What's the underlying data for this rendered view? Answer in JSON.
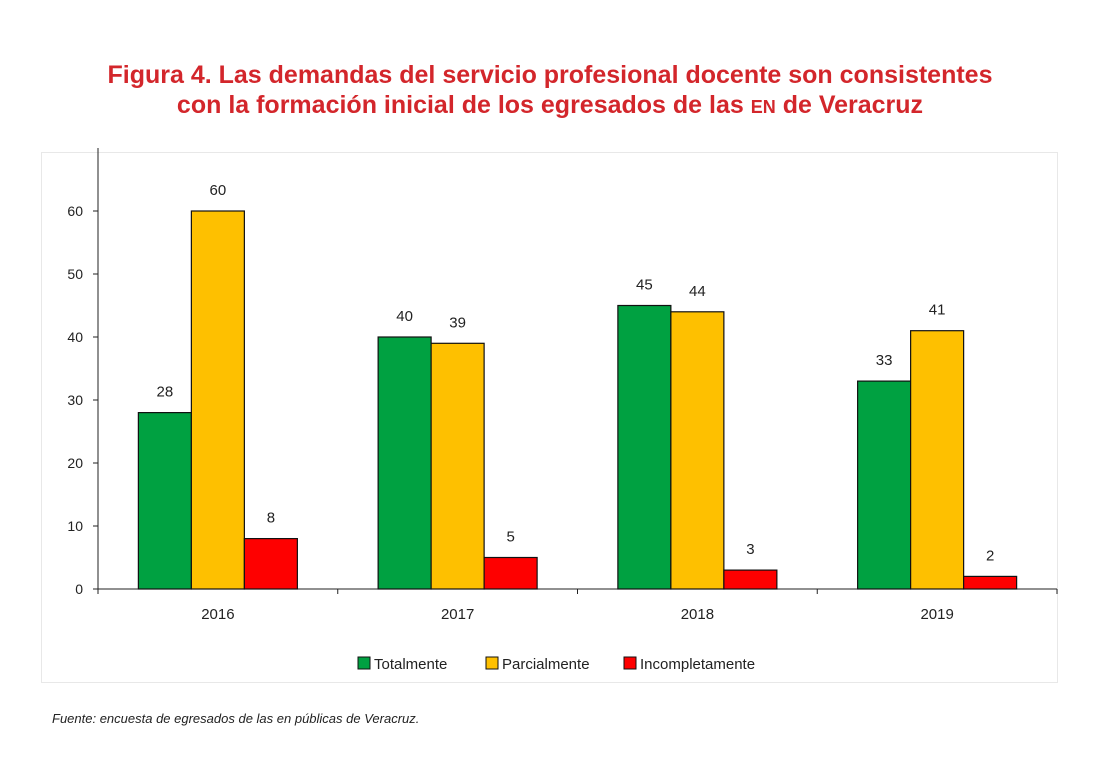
{
  "title": {
    "line1": "Figura 4. Las demandas del servicio profesional docente son consistentes",
    "line2_a": "con la formación inicial de los egresados de las ",
    "line2_sc": "en",
    "line2_b": " de Veracruz"
  },
  "source": "Fuente: encuesta de egresados de las en públicas de Veracruz.",
  "colors": {
    "Totalmente": "#00a141",
    "Parcialmente": "#fec000",
    "Incompletamente": "#fe0000"
  },
  "chart_data": {
    "type": "bar",
    "categories": [
      "2016",
      "2017",
      "2018",
      "2019"
    ],
    "series": [
      {
        "name": "Totalmente",
        "values": [
          28,
          40,
          45,
          33
        ]
      },
      {
        "name": "Parcialmente",
        "values": [
          60,
          39,
          44,
          41
        ]
      },
      {
        "name": "Incompletamente",
        "values": [
          8,
          5,
          3,
          2
        ]
      }
    ],
    "ylim": [
      0,
      70
    ],
    "yticks": [
      0,
      10,
      20,
      30,
      40,
      50,
      60
    ],
    "xlabel": "",
    "ylabel": "",
    "grid": false,
    "legend": "bottom",
    "data_labels": true
  }
}
